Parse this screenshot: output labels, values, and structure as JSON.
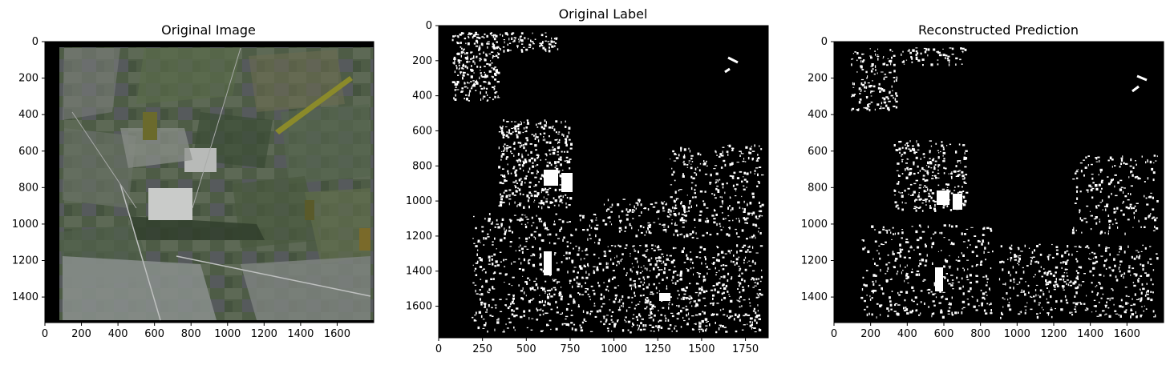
{
  "panels": [
    {
      "title": "Original Image",
      "kind": "satellite-rgb",
      "xticks": [
        "0",
        "200",
        "400",
        "600",
        "800",
        "1000",
        "1200",
        "1400",
        "1600"
      ],
      "yticks": [
        "0",
        "200",
        "400",
        "600",
        "800",
        "1000",
        "1200",
        "1400"
      ]
    },
    {
      "title": "Original Label",
      "kind": "binary-mask",
      "xticks": [
        "0",
        "250",
        "500",
        "750",
        "1000",
        "1250",
        "1500",
        "1750"
      ],
      "yticks": [
        "0",
        "200",
        "400",
        "600",
        "800",
        "1000",
        "1200",
        "1400",
        "1600"
      ]
    },
    {
      "title": "Reconstructed Prediction",
      "kind": "binary-mask",
      "xticks": [
        "0",
        "200",
        "400",
        "600",
        "800",
        "1000",
        "1200",
        "1400",
        "1600"
      ],
      "yticks": [
        "0",
        "200",
        "400",
        "600",
        "800",
        "1000",
        "1200",
        "1400"
      ]
    }
  ],
  "colors": {
    "mask_background": "#000000",
    "mask_foreground": "#ffffff",
    "satellite_base": "#4d5a48"
  }
}
